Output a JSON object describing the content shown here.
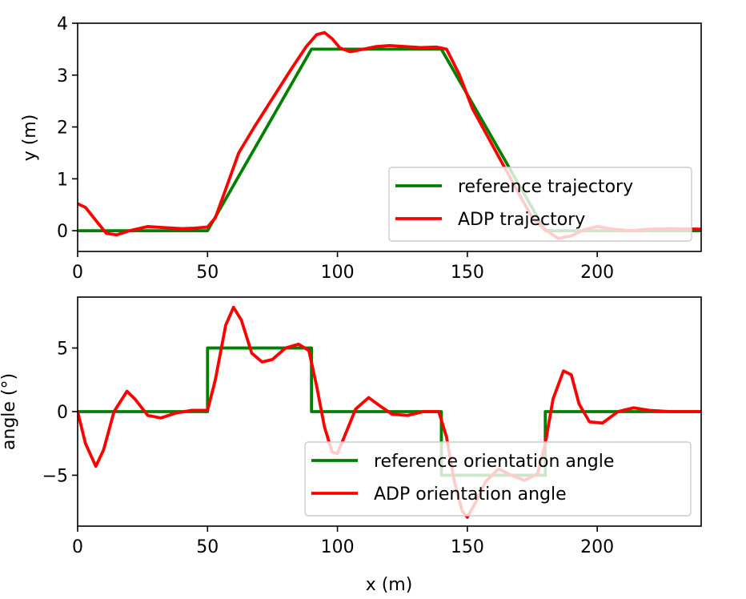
{
  "chart_data": [
    {
      "type": "line",
      "xlabel": "",
      "ylabel": "y (m)",
      "xlim": [
        0,
        240
      ],
      "ylim": [
        -0.4,
        4
      ],
      "xticks": [
        0,
        50,
        100,
        150,
        200
      ],
      "yticks": [
        0,
        1,
        2,
        3,
        4
      ],
      "legend_position": "bottom-right",
      "series": [
        {
          "name": "reference trajectory",
          "color": "#008000",
          "x": [
            0,
            50,
            90,
            140,
            180,
            240
          ],
          "y": [
            0,
            0,
            3.5,
            3.5,
            0,
            0
          ]
        },
        {
          "name": "ADP trajectory",
          "color": "#ff0000",
          "x": [
            0,
            3,
            7,
            11,
            15,
            20,
            27,
            33,
            40,
            45,
            50,
            53,
            57,
            62,
            68,
            75,
            82,
            88,
            92,
            95,
            98,
            101,
            105,
            110,
            115,
            120,
            126,
            132,
            138,
            142,
            147,
            152,
            158,
            164,
            170,
            175,
            180,
            185,
            190,
            195,
            200,
            206,
            213,
            220,
            228,
            240
          ],
          "y": [
            0.52,
            0.45,
            0.2,
            -0.05,
            -0.08,
            0.0,
            0.08,
            0.06,
            0.04,
            0.05,
            0.07,
            0.25,
            0.8,
            1.5,
            2.0,
            2.55,
            3.1,
            3.55,
            3.78,
            3.82,
            3.7,
            3.52,
            3.45,
            3.5,
            3.55,
            3.57,
            3.55,
            3.53,
            3.54,
            3.5,
            3.0,
            2.35,
            1.8,
            1.25,
            0.7,
            0.25,
            0.02,
            -0.15,
            -0.1,
            0.02,
            0.08,
            0.03,
            0.0,
            0.03,
            0.04,
            0.03
          ]
        }
      ]
    },
    {
      "type": "line",
      "xlabel": "x (m)",
      "ylabel": "angle (°)",
      "xlim": [
        0,
        240
      ],
      "ylim": [
        -9,
        9
      ],
      "xticks": [
        0,
        50,
        100,
        150,
        200
      ],
      "yticks": [
        -5,
        0,
        5
      ],
      "legend_position": "bottom-right",
      "series": [
        {
          "name": "reference orientation angle",
          "color": "#008000",
          "x": [
            0,
            50,
            50,
            90,
            90,
            140,
            140,
            180,
            180,
            240
          ],
          "y": [
            0,
            0,
            5,
            5,
            0,
            0,
            -5,
            -5,
            0,
            0
          ]
        },
        {
          "name": "ADP orientation angle",
          "color": "#ff0000",
          "x": [
            0,
            3,
            7,
            10,
            14,
            19,
            22,
            27,
            32,
            38,
            44,
            50,
            53,
            57,
            60,
            63,
            67,
            71,
            75,
            80,
            85,
            89,
            92,
            95,
            98,
            100,
            103,
            107,
            112,
            116,
            121,
            127,
            133,
            139,
            142,
            145,
            148,
            150,
            153,
            157,
            162,
            167,
            172,
            177,
            180,
            183,
            187,
            190,
            193,
            197,
            202,
            208,
            214,
            220,
            228,
            240
          ],
          "y": [
            0,
            -2.5,
            -4.3,
            -3.0,
            0.0,
            1.6,
            1.0,
            -0.3,
            -0.5,
            -0.1,
            0.1,
            0.1,
            2.5,
            6.8,
            8.2,
            7.2,
            4.6,
            3.9,
            4.1,
            5.0,
            5.3,
            4.8,
            2.0,
            -1.2,
            -3.2,
            -3.3,
            -1.8,
            0.2,
            1.1,
            0.5,
            -0.2,
            -0.3,
            0.0,
            0.0,
            -2.0,
            -5.5,
            -7.8,
            -8.3,
            -7.2,
            -5.5,
            -4.5,
            -5.0,
            -5.4,
            -4.9,
            -2.5,
            1.0,
            3.2,
            2.9,
            0.6,
            -0.8,
            -0.9,
            0.0,
            0.3,
            0.1,
            0.0,
            0.0
          ]
        }
      ]
    }
  ]
}
